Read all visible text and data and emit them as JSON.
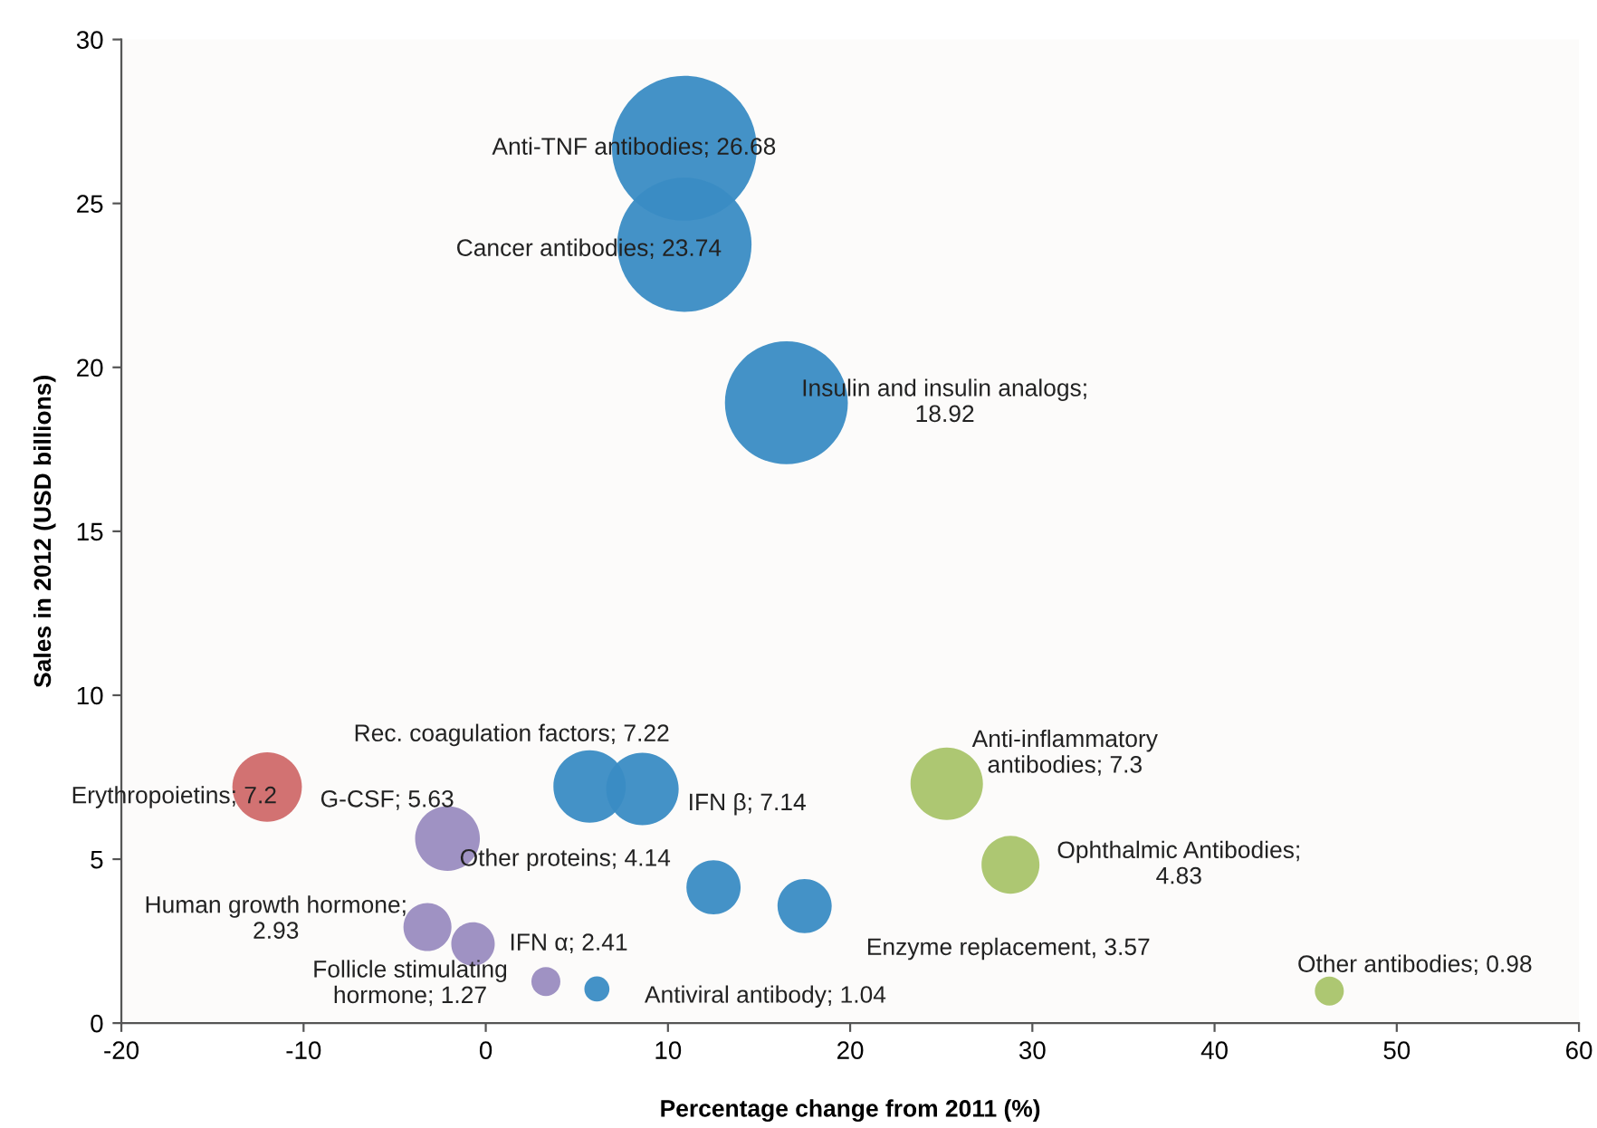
{
  "chart_data": {
    "type": "bubble",
    "xlabel": "Percentage change from 2011 (%)",
    "ylabel": "Sales in 2012 (USD billions)",
    "xlim": [
      -20,
      60
    ],
    "xticks": [
      -20,
      -10,
      0,
      10,
      20,
      30,
      40,
      50,
      60
    ],
    "ylim": [
      0,
      30
    ],
    "yticks": [
      0,
      5,
      10,
      15,
      20,
      25,
      30
    ],
    "grid": false,
    "legend": false,
    "x": [
      10.9,
      10.9,
      16.5,
      5.7,
      8.6,
      -12,
      -2.1,
      25.3,
      28.8,
      12.5,
      17.5,
      -3.2,
      -0.7,
      3.3,
      6.1,
      46.3
    ],
    "values": [
      26.68,
      23.74,
      18.92,
      7.22,
      7.14,
      7.2,
      5.63,
      7.3,
      4.83,
      4.14,
      3.57,
      2.93,
      2.41,
      1.27,
      1.04,
      0.98
    ],
    "sizes": [
      1,
      0.86,
      0.72,
      0.25,
      0.25,
      0.23,
      0.2,
      0.25,
      0.16,
      0.14,
      0.14,
      0.11,
      0.09,
      0.04,
      0.03,
      0.04
    ],
    "colors": [
      "#3a8cc4",
      "#3a8cc4",
      "#3a8cc4",
      "#3a8cc4",
      "#3a8cc4",
      "#d06a6a",
      "#9a8cc0",
      "#a9c46a",
      "#a9c46a",
      "#3a8cc4",
      "#3a8cc4",
      "#9a8cc0",
      "#9a8cc0",
      "#9a8cc0",
      "#3a8cc4",
      "#a9c46a"
    ],
    "annotations": [
      {
        "text": "Anti-TNF antibodies; 26.68",
        "x": 10.9,
        "y": 26.68
      },
      {
        "text": "Cancer antibodies; 23.74",
        "x": 10.9,
        "y": 23.74
      },
      {
        "text": "Insulin and insulin analogs;\n18.92",
        "x": 16.5,
        "y": 18.92
      },
      {
        "text": "Rec. coagulation factors; 7.22",
        "x": 5.7,
        "y": 7.22
      },
      {
        "text": "IFN β; 7.14",
        "x": 8.6,
        "y": 7.14
      },
      {
        "text": "Erythropoietins; 7.2",
        "x": -12,
        "y": 7.2
      },
      {
        "text": "G-CSF; 5.63",
        "x": -2.1,
        "y": 5.63
      },
      {
        "text": "Anti-inflammatory\nantibodies; 7.3",
        "x": 25.3,
        "y": 7.3
      },
      {
        "text": "Ophthalmic Antibodies;\n4.83",
        "x": 28.8,
        "y": 4.83
      },
      {
        "text": "Other proteins; 4.14",
        "x": 12.5,
        "y": 4.14
      },
      {
        "text": "Enzyme replacement, 3.57",
        "x": 17.5,
        "y": 3.57
      },
      {
        "text": "Human growth hormone;\n2.93",
        "x": -3.2,
        "y": 2.93
      },
      {
        "text": "IFN α; 2.41",
        "x": -0.7,
        "y": 2.41
      },
      {
        "text": "Follicle stimulating\nhormone; 1.27",
        "x": 3.3,
        "y": 1.27
      },
      {
        "text": "Antiviral antibody; 1.04",
        "x": 6.1,
        "y": 1.04
      },
      {
        "text": "Other antibodies; 0.98",
        "x": 46.3,
        "y": 0.98
      }
    ]
  }
}
